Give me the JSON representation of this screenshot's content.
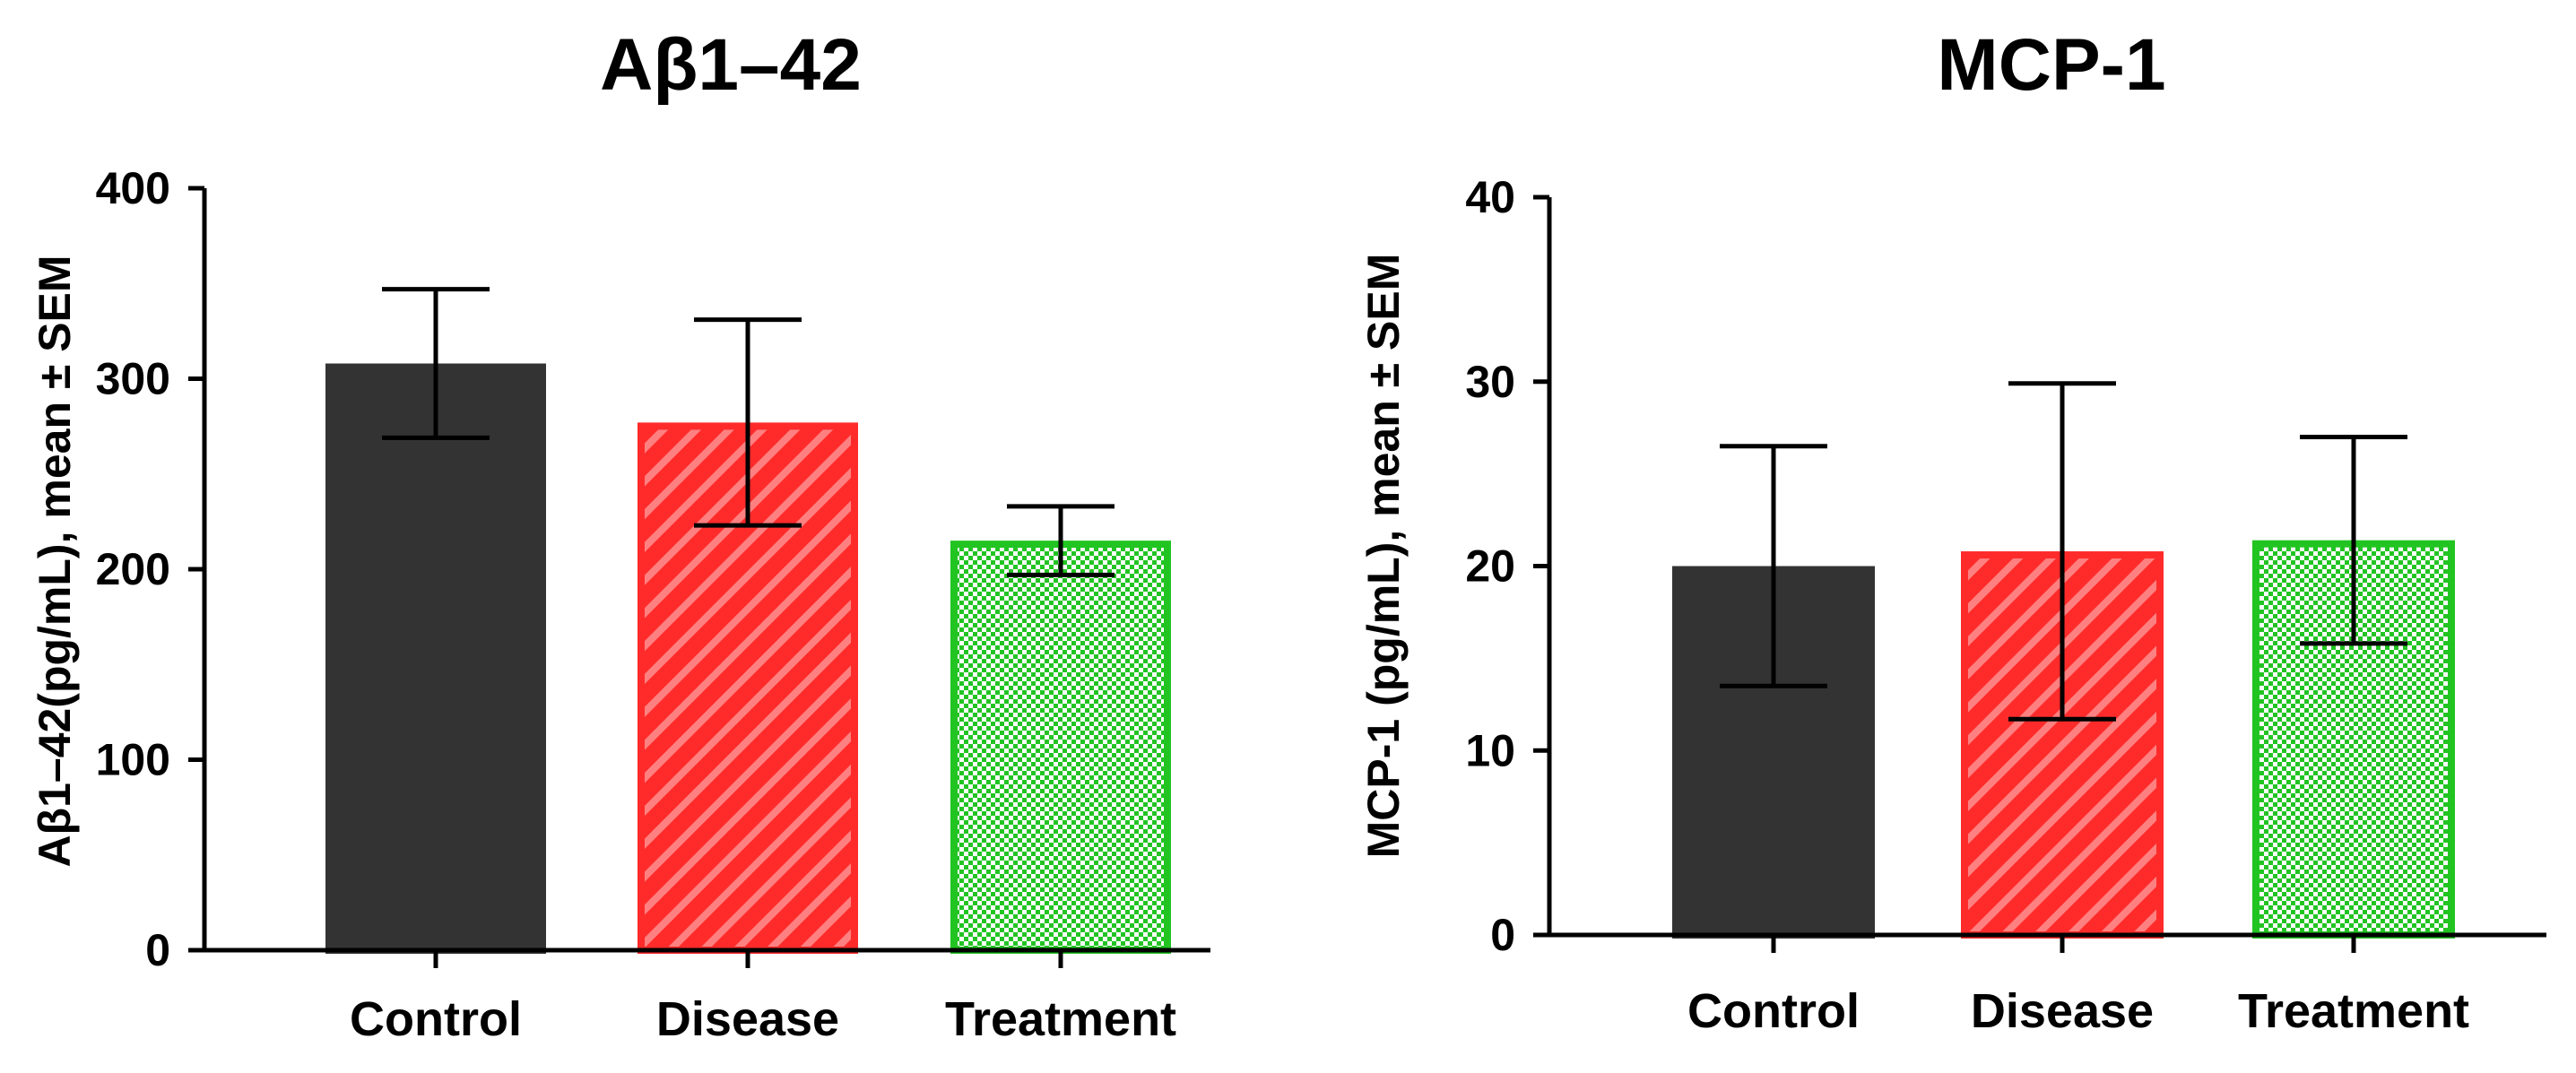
{
  "chart_data": [
    {
      "type": "bar",
      "title": "Aβ1–42",
      "xlabel": "",
      "ylabel": "Aβ1–42(pg/mL), mean ± SEM",
      "ylim": [
        0,
        400
      ],
      "yticks": [
        0,
        100,
        200,
        300,
        400
      ],
      "categories": [
        "Control",
        "Disease",
        "Treatment"
      ],
      "values": [
        308,
        277,
        215
      ],
      "errors": [
        39,
        54,
        18
      ],
      "colors": [
        "#333333",
        "#ff2b2b",
        "#22c422"
      ],
      "patterns": [
        "solid",
        "diagonal-stripes",
        "checkered"
      ]
    },
    {
      "type": "bar",
      "title": "MCP-1",
      "xlabel": "",
      "ylabel": "MCP-1 (pg/mL), mean ± SEM",
      "ylim": [
        0,
        40
      ],
      "yticks": [
        0,
        10,
        20,
        30,
        40
      ],
      "categories": [
        "Control",
        "Disease",
        "Treatment"
      ],
      "values": [
        20,
        20.8,
        21.4
      ],
      "errors": [
        6.5,
        9.1,
        5.6
      ],
      "colors": [
        "#333333",
        "#ff2b2b",
        "#22c422"
      ],
      "patterns": [
        "solid",
        "diagonal-stripes",
        "checkered"
      ]
    }
  ]
}
